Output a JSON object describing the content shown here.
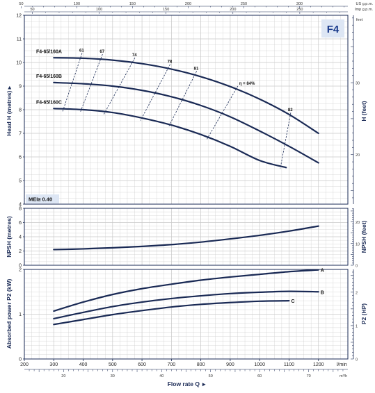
{
  "chart_data": [
    {
      "type": "line",
      "title": "F4",
      "ylabel": "Head H (metres)",
      "ylabel_right": "H (feet)",
      "xlim": [
        200,
        1300
      ],
      "ylim": [
        4,
        12
      ],
      "yticks": [
        4,
        5,
        6,
        7,
        8,
        9,
        10,
        11,
        12
      ],
      "yticks_right": [
        20,
        30
      ],
      "top_axis_us": {
        "label": "US g.p.m.",
        "ticks": [
          50,
          100,
          150,
          200,
          250,
          300
        ]
      },
      "top_axis_imp": {
        "label": "Imp g.p.m.",
        "ticks": [
          50,
          100,
          150,
          200,
          250
        ]
      },
      "annotation": "MEI≥ 0.40",
      "series": [
        {
          "name": "F4-65/160A",
          "x": [
            300,
            400,
            500,
            600,
            700,
            800,
            900,
            1000,
            1100,
            1200
          ],
          "y": [
            10.2,
            10.18,
            10.1,
            9.95,
            9.72,
            9.4,
            8.98,
            8.45,
            7.8,
            7.0
          ]
        },
        {
          "name": "F4-65/160B",
          "x": [
            300,
            400,
            500,
            600,
            700,
            800,
            900,
            1000,
            1100,
            1200
          ],
          "y": [
            9.15,
            9.1,
            9.0,
            8.82,
            8.55,
            8.18,
            7.7,
            7.1,
            6.45,
            5.75
          ]
        },
        {
          "name": "F4-65/160C",
          "x": [
            300,
            400,
            500,
            600,
            700,
            800,
            900,
            1000,
            1090
          ],
          "y": [
            8.05,
            8.0,
            7.88,
            7.65,
            7.35,
            6.95,
            6.45,
            5.85,
            5.55
          ]
        }
      ],
      "efficiency_labels": [
        "61",
        "67",
        "74",
        "78",
        "81",
        "η = 84%",
        "82"
      ]
    },
    {
      "type": "line",
      "ylabel": "NPSH (metres)",
      "ylabel_right": "NPSH (feet)",
      "xlim": [
        200,
        1300
      ],
      "ylim": [
        0,
        8
      ],
      "yticks": [
        0,
        2,
        4,
        6,
        8
      ],
      "yticks_right": [
        0,
        10,
        20
      ],
      "series": [
        {
          "name": "",
          "x": [
            300,
            400,
            500,
            600,
            700,
            800,
            900,
            1000,
            1100,
            1200
          ],
          "y": [
            2.2,
            2.3,
            2.45,
            2.65,
            2.9,
            3.25,
            3.7,
            4.2,
            4.8,
            5.5
          ]
        }
      ]
    },
    {
      "type": "line",
      "ylabel": "Absorbed power P2 (kW)",
      "ylabel_right": "P2 (HP)",
      "xlabel": "Flow rate Q",
      "xunit": "l/min",
      "xunit2": "m³/h",
      "xlim": [
        200,
        1300
      ],
      "ylim": [
        0,
        2
      ],
      "yticks": [
        0,
        1,
        2
      ],
      "yticks_right": [
        0,
        1,
        2
      ],
      "xticks": [
        200,
        300,
        400,
        500,
        600,
        700,
        800,
        900,
        1000,
        1100,
        1200
      ],
      "xticks_m3h": [
        20,
        30,
        40,
        50,
        60,
        70
      ],
      "series": [
        {
          "name": "A",
          "x": [
            300,
            400,
            500,
            600,
            700,
            800,
            900,
            1000,
            1100,
            1200
          ],
          "y": [
            1.07,
            1.27,
            1.44,
            1.57,
            1.67,
            1.76,
            1.83,
            1.89,
            1.95,
            1.99
          ]
        },
        {
          "name": "B",
          "x": [
            300,
            400,
            500,
            600,
            700,
            800,
            900,
            1000,
            1100,
            1200
          ],
          "y": [
            0.9,
            1.04,
            1.17,
            1.27,
            1.35,
            1.41,
            1.46,
            1.49,
            1.51,
            1.5
          ]
        },
        {
          "name": "C",
          "x": [
            300,
            400,
            500,
            600,
            700,
            800,
            900,
            1000,
            1100
          ],
          "y": [
            0.77,
            0.88,
            0.99,
            1.08,
            1.16,
            1.22,
            1.26,
            1.29,
            1.3
          ]
        }
      ]
    }
  ],
  "colors": {
    "curve": "#1a2a55",
    "grid": "#c8c8c8",
    "border": "#1a2a55",
    "badge_bg": "#dde6f4",
    "badge_text": "#1a3a8a",
    "mei_bg": "#dde6f4"
  }
}
